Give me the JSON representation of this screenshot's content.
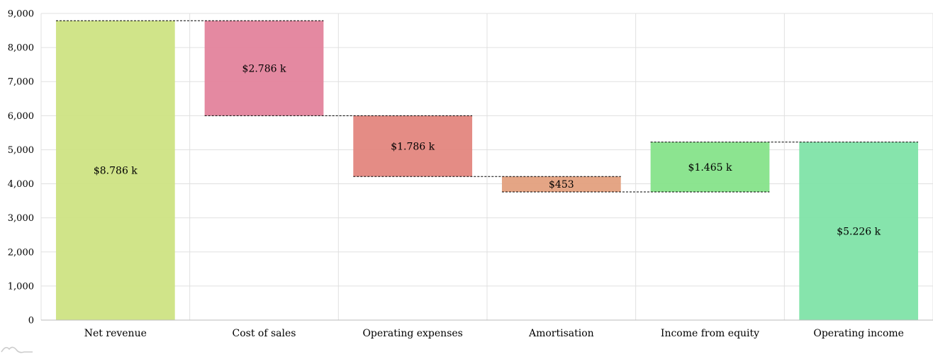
{
  "chart_data": {
    "type": "bar",
    "subtype": "waterfall",
    "categories": [
      "Net revenue",
      "Cost of sales",
      "Operating expenses",
      "Amortisation",
      "Income from equity",
      "Operating income"
    ],
    "steps": [
      {
        "name": "Net revenue",
        "open": 0,
        "close": 8786,
        "label": "$8.786 k",
        "color": "#cde383"
      },
      {
        "name": "Cost of sales",
        "open": 8786,
        "close": 6000,
        "label": "$2.786 k",
        "color": "#e3839c"
      },
      {
        "name": "Operating expenses",
        "open": 6000,
        "close": 4214,
        "label": "$1.786 k",
        "color": "#e3867e"
      },
      {
        "name": "Amortisation",
        "open": 4214,
        "close": 3761,
        "label": "$453",
        "color": "#e3a07e"
      },
      {
        "name": "Income from equity",
        "open": 3761,
        "close": 5226,
        "label": "$1.465 k",
        "color": "#86e38a"
      },
      {
        "name": "Operating income",
        "open": 0,
        "close": 5226,
        "label": "$5.226 k",
        "color": "#80e3a8"
      }
    ],
    "y_ticks": [
      "0",
      "1,000",
      "2,000",
      "3,000",
      "4,000",
      "5,000",
      "6,000",
      "7,000",
      "8,000",
      "9,000"
    ],
    "ylim": [
      0,
      9000
    ],
    "grid": true,
    "connectors": "dashed",
    "title": "",
    "xlabel": "",
    "ylabel": ""
  },
  "logo_icon": "amcharts-logo-icon"
}
